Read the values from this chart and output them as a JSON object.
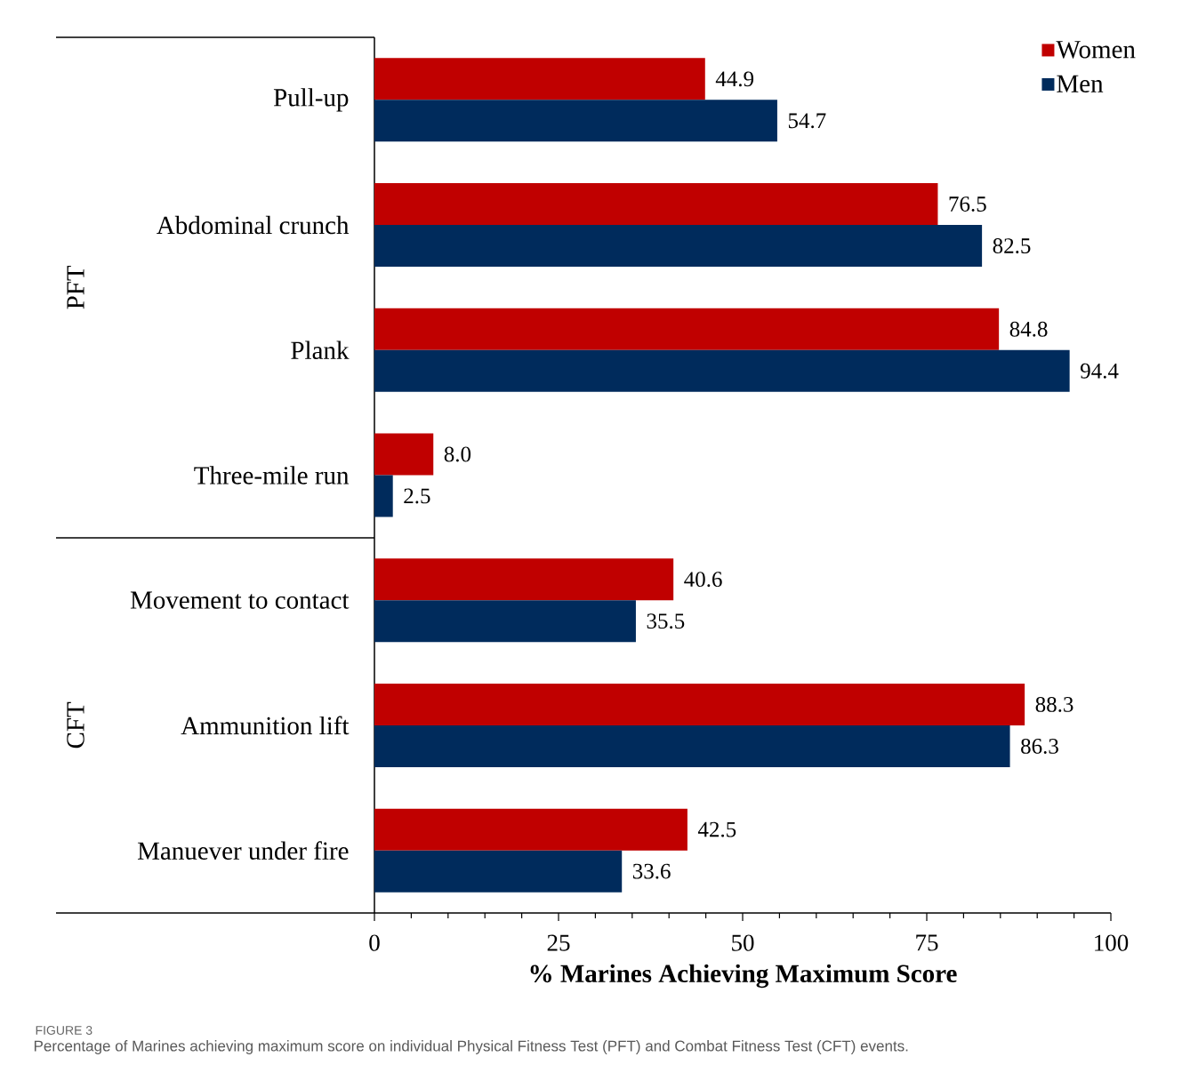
{
  "chart_data": {
    "type": "bar",
    "orientation": "horizontal",
    "categories": [
      "Pull-up",
      "Abdominal crunch",
      "Plank",
      "Three-mile run",
      "Movement to contact",
      "Ammunition lift",
      "Manuever under fire"
    ],
    "series": [
      {
        "name": "Women",
        "color": "#c00000",
        "values": [
          44.9,
          76.5,
          84.8,
          8.0,
          40.6,
          88.3,
          42.5
        ],
        "value_labels": [
          "44.9",
          "76.5",
          "84.8",
          "8.0",
          "40.6",
          "88.3",
          "42.5"
        ]
      },
      {
        "name": "Men",
        "color": "#002b5c",
        "values": [
          54.7,
          82.5,
          94.4,
          2.5,
          35.5,
          86.3,
          33.6
        ],
        "value_labels": [
          "54.7",
          "82.5",
          "94.4",
          "2.5",
          "35.5",
          "86.3",
          "33.6"
        ]
      }
    ],
    "xlabel": "% Marines Achieving Maximum Score",
    "xlim": [
      0,
      100
    ],
    "xticks": [
      0,
      {
        "value": 5,
        "label": null
      },
      {
        "value": 10,
        "label": null
      },
      {
        "value": 15,
        "label": null
      },
      {
        "value": 20,
        "label": null
      },
      25,
      {
        "value": 30,
        "label": null
      },
      {
        "value": 35,
        "label": null
      },
      {
        "value": 40,
        "label": null
      },
      {
        "value": 45,
        "label": null
      },
      50,
      {
        "value": 55,
        "label": null
      },
      {
        "value": 60,
        "label": null
      },
      {
        "value": 65,
        "label": null
      },
      {
        "value": 70,
        "label": null
      },
      75,
      {
        "value": 80,
        "label": null
      },
      {
        "value": 85,
        "label": null
      },
      {
        "value": 90,
        "label": null
      },
      {
        "value": 95,
        "label": null
      },
      100
    ],
    "legend": "top right",
    "annotations": [
      "PFT",
      "CFT",
      "FIGURE 3",
      "Percentage of Marines achieving maximum score on individual Physical Fitness Test (PFT) and Combat Fitness Test (CFT) events."
    ]
  }
}
